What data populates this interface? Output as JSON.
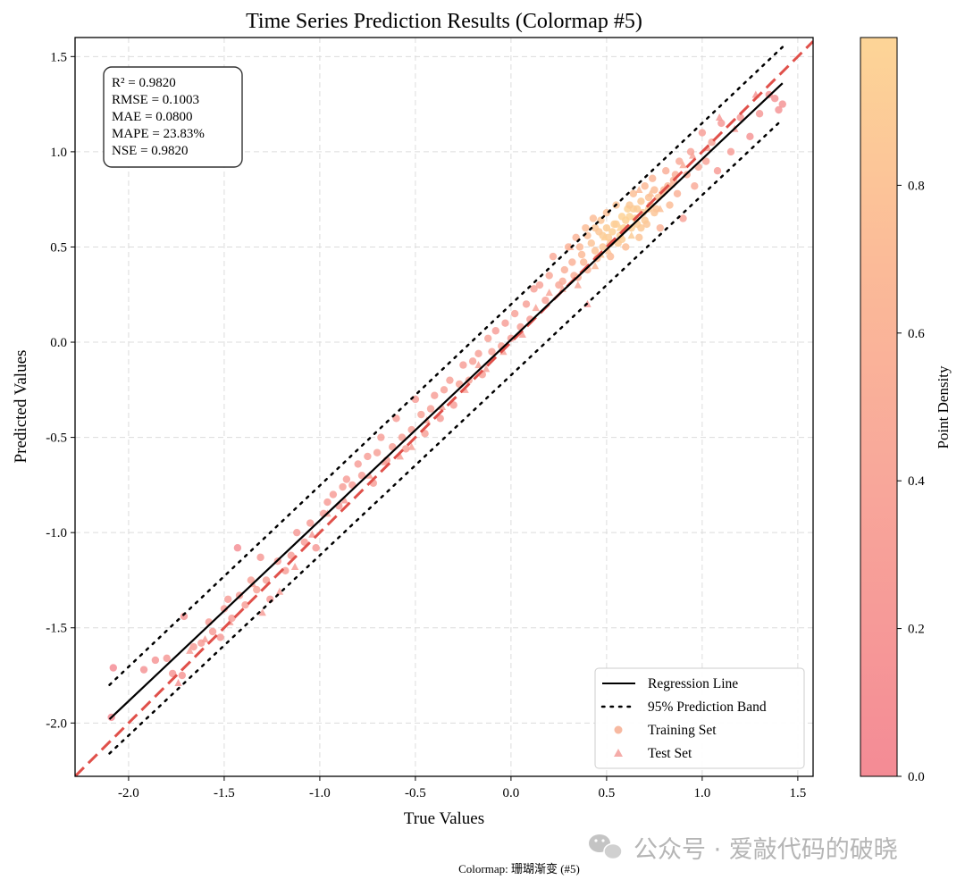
{
  "chart_data": {
    "type": "scatter",
    "title": "Time Series Prediction Results (Colormap #5)",
    "xlabel": "True Values",
    "ylabel": "Predicted Values",
    "xlim": [
      -2.28,
      1.58
    ],
    "ylim": [
      -2.28,
      1.6
    ],
    "x_ticks": [
      -2.0,
      -1.5,
      -1.0,
      -0.5,
      0.0,
      0.5,
      1.0,
      1.5
    ],
    "x_tick_labels": [
      "-2.0",
      "-1.5",
      "-1.0",
      "-0.5",
      "0.0",
      "0.5",
      "1.0",
      "1.5"
    ],
    "y_ticks": [
      -2.0,
      -1.5,
      -1.0,
      -0.5,
      0.0,
      0.5,
      1.0,
      1.5
    ],
    "y_tick_labels": [
      "-2.0",
      "-1.5",
      "-1.0",
      "-0.5",
      "0.0",
      "0.5",
      "1.0",
      "1.5"
    ],
    "grid": true,
    "identity_line": {
      "x": [
        -2.28,
        1.58
      ],
      "y": [
        -2.28,
        1.58
      ],
      "style": "dashed",
      "color": "#e0504a"
    },
    "regression_line": {
      "name": "Regression Line",
      "x": [
        -2.1,
        1.42
      ],
      "y": [
        -1.98,
        1.36
      ]
    },
    "prediction_band": {
      "name": "95% Prediction Band",
      "x": [
        -2.1,
        1.42
      ],
      "upper": [
        -1.8,
        1.55
      ],
      "lower": [
        -2.16,
        1.17
      ]
    },
    "series": [
      {
        "name": "Training Set",
        "marker": "circle",
        "points": [
          [
            -2.08,
            -1.71
          ],
          [
            -2.09,
            -1.97
          ],
          [
            -1.92,
            -1.72
          ],
          [
            -1.86,
            -1.67
          ],
          [
            -1.8,
            -1.66
          ],
          [
            -1.77,
            -1.74
          ],
          [
            -1.72,
            -1.75
          ],
          [
            -1.71,
            -1.44
          ],
          [
            -1.66,
            -1.6
          ],
          [
            -1.62,
            -1.58
          ],
          [
            -1.58,
            -1.47
          ],
          [
            -1.56,
            -1.52
          ],
          [
            -1.52,
            -1.55
          ],
          [
            -1.5,
            -1.4
          ],
          [
            -1.48,
            -1.35
          ],
          [
            -1.46,
            -1.45
          ],
          [
            -1.43,
            -1.08
          ],
          [
            -1.42,
            -1.33
          ],
          [
            -1.39,
            -1.38
          ],
          [
            -1.36,
            -1.25
          ],
          [
            -1.33,
            -1.3
          ],
          [
            -1.31,
            -1.13
          ],
          [
            -1.28,
            -1.25
          ],
          [
            -1.26,
            -1.35
          ],
          [
            -1.22,
            -1.15
          ],
          [
            -1.18,
            -1.2
          ],
          [
            -1.15,
            -1.12
          ],
          [
            -1.12,
            -1.0
          ],
          [
            -1.08,
            -1.05
          ],
          [
            -1.05,
            -0.95
          ],
          [
            -1.02,
            -1.08
          ],
          [
            -0.98,
            -0.9
          ],
          [
            -0.96,
            -0.84
          ],
          [
            -0.93,
            -0.8
          ],
          [
            -0.9,
            -0.86
          ],
          [
            -0.88,
            -0.76
          ],
          [
            -0.86,
            -0.72
          ],
          [
            -0.83,
            -0.75
          ],
          [
            -0.8,
            -0.64
          ],
          [
            -0.78,
            -0.7
          ],
          [
            -0.75,
            -0.6
          ],
          [
            -0.72,
            -0.74
          ],
          [
            -0.7,
            -0.58
          ],
          [
            -0.68,
            -0.5
          ],
          [
            -0.65,
            -0.62
          ],
          [
            -0.62,
            -0.55
          ],
          [
            -0.6,
            -0.4
          ],
          [
            -0.57,
            -0.5
          ],
          [
            -0.55,
            -0.56
          ],
          [
            -0.52,
            -0.46
          ],
          [
            -0.5,
            -0.3
          ],
          [
            -0.47,
            -0.38
          ],
          [
            -0.45,
            -0.48
          ],
          [
            -0.42,
            -0.35
          ],
          [
            -0.4,
            -0.28
          ],
          [
            -0.37,
            -0.4
          ],
          [
            -0.35,
            -0.25
          ],
          [
            -0.32,
            -0.2
          ],
          [
            -0.3,
            -0.33
          ],
          [
            -0.27,
            -0.22
          ],
          [
            -0.25,
            -0.12
          ],
          [
            -0.22,
            -0.2
          ],
          [
            -0.2,
            -0.1
          ],
          [
            -0.17,
            -0.06
          ],
          [
            -0.15,
            -0.17
          ],
          [
            -0.12,
            0.02
          ],
          [
            -0.1,
            -0.05
          ],
          [
            -0.08,
            0.06
          ],
          [
            -0.05,
            -0.02
          ],
          [
            -0.03,
            0.1
          ],
          [
            0.0,
            0.02
          ],
          [
            0.02,
            0.15
          ],
          [
            0.05,
            0.08
          ],
          [
            0.08,
            0.2
          ],
          [
            0.1,
            0.12
          ],
          [
            0.12,
            0.28
          ],
          [
            0.15,
            0.3
          ],
          [
            0.18,
            0.22
          ],
          [
            0.2,
            0.35
          ],
          [
            0.22,
            0.45
          ],
          [
            0.25,
            0.3
          ],
          [
            0.28,
            0.38
          ],
          [
            0.3,
            0.5
          ],
          [
            0.32,
            0.42
          ],
          [
            0.34,
            0.55
          ],
          [
            0.35,
            0.34
          ],
          [
            0.37,
            0.46
          ],
          [
            0.39,
            0.6
          ],
          [
            0.4,
            0.38
          ],
          [
            0.42,
            0.52
          ],
          [
            0.43,
            0.65
          ],
          [
            0.45,
            0.44
          ],
          [
            0.46,
            0.58
          ],
          [
            0.48,
            0.5
          ],
          [
            0.5,
            0.68
          ],
          [
            0.51,
            0.55
          ],
          [
            0.52,
            0.45
          ],
          [
            0.54,
            0.62
          ],
          [
            0.55,
            0.72
          ],
          [
            0.57,
            0.56
          ],
          [
            0.58,
            0.66
          ],
          [
            0.6,
            0.5
          ],
          [
            0.61,
            0.7
          ],
          [
            0.63,
            0.6
          ],
          [
            0.64,
            0.78
          ],
          [
            0.65,
            0.65
          ],
          [
            0.67,
            0.55
          ],
          [
            0.68,
            0.74
          ],
          [
            0.7,
            0.82
          ],
          [
            0.71,
            0.62
          ],
          [
            0.72,
            0.7
          ],
          [
            0.74,
            0.86
          ],
          [
            0.75,
            0.68
          ],
          [
            0.77,
            0.76
          ],
          [
            0.78,
            0.6
          ],
          [
            0.8,
            0.8
          ],
          [
            0.81,
            0.9
          ],
          [
            0.83,
            0.72
          ],
          [
            0.85,
            0.85
          ],
          [
            0.87,
            0.78
          ],
          [
            0.88,
            0.95
          ],
          [
            0.9,
            0.65
          ],
          [
            0.92,
            0.88
          ],
          [
            0.94,
            1.0
          ],
          [
            0.96,
            0.82
          ],
          [
            0.98,
            0.92
          ],
          [
            1.0,
            1.1
          ],
          [
            1.02,
            0.95
          ],
          [
            1.05,
            1.05
          ],
          [
            1.08,
            0.9
          ],
          [
            1.1,
            1.15
          ],
          [
            1.15,
            1.0
          ],
          [
            1.2,
            1.18
          ],
          [
            1.25,
            1.08
          ],
          [
            1.3,
            1.2
          ],
          [
            1.35,
            1.3
          ],
          [
            1.38,
            1.28
          ],
          [
            1.4,
            1.22
          ],
          [
            1.42,
            1.25
          ],
          [
            0.36,
            0.5
          ],
          [
            0.4,
            0.56
          ],
          [
            0.44,
            0.48
          ],
          [
            0.47,
            0.64
          ],
          [
            0.53,
            0.58
          ],
          [
            0.56,
            0.52
          ],
          [
            0.59,
            0.6
          ],
          [
            0.62,
            0.66
          ],
          [
            0.66,
            0.62
          ],
          [
            0.69,
            0.68
          ],
          [
            0.73,
            0.72
          ],
          [
            0.76,
            0.7
          ],
          [
            0.79,
            0.78
          ],
          [
            0.82,
            0.82
          ],
          [
            0.86,
            0.88
          ],
          [
            0.6,
            0.64
          ],
          [
            0.64,
            0.7
          ],
          [
            0.68,
            0.6
          ],
          [
            0.72,
            0.76
          ],
          [
            0.5,
            0.6
          ],
          [
            0.55,
            0.62
          ],
          [
            0.58,
            0.54
          ],
          [
            0.62,
            0.72
          ],
          [
            0.7,
            0.64
          ],
          [
            0.75,
            0.8
          ],
          [
            0.66,
            0.7
          ],
          [
            0.52,
            0.52
          ],
          [
            0.48,
            0.56
          ],
          [
            0.44,
            0.6
          ],
          [
            0.38,
            0.42
          ],
          [
            0.33,
            0.35
          ],
          [
            0.27,
            0.32
          ]
        ]
      },
      {
        "name": "Test Set",
        "marker": "triangle",
        "points": [
          [
            -1.74,
            -1.79
          ],
          [
            -1.68,
            -1.62
          ],
          [
            -1.6,
            -1.56
          ],
          [
            -1.47,
            -1.47
          ],
          [
            -1.35,
            -1.27
          ],
          [
            -1.3,
            -1.42
          ],
          [
            -1.21,
            -1.31
          ],
          [
            -1.13,
            -1.18
          ],
          [
            -1.04,
            -1.01
          ],
          [
            -0.96,
            -0.9
          ],
          [
            -0.87,
            -0.83
          ],
          [
            -0.74,
            -0.7
          ],
          [
            -0.66,
            -0.63
          ],
          [
            -0.58,
            -0.6
          ],
          [
            -0.44,
            -0.41
          ],
          [
            -0.36,
            -0.34
          ],
          [
            -0.24,
            -0.25
          ],
          [
            -0.13,
            -0.14
          ],
          [
            -0.04,
            -0.05
          ],
          [
            0.06,
            0.04
          ],
          [
            0.13,
            0.18
          ],
          [
            0.2,
            0.26
          ],
          [
            0.27,
            0.28
          ],
          [
            0.31,
            0.5
          ],
          [
            0.4,
            0.2
          ],
          [
            0.44,
            0.4
          ],
          [
            0.49,
            0.55
          ],
          [
            0.57,
            0.6
          ],
          [
            0.63,
            0.56
          ],
          [
            0.67,
            0.8
          ],
          [
            0.73,
            0.78
          ],
          [
            0.78,
            0.7
          ],
          [
            0.84,
            0.83
          ],
          [
            0.9,
            0.93
          ],
          [
            0.95,
            0.98
          ],
          [
            1.03,
            1.02
          ],
          [
            1.09,
            1.18
          ],
          [
            1.17,
            1.12
          ],
          [
            1.28,
            1.3
          ],
          [
            0.51,
            0.48
          ],
          [
            0.47,
            0.46
          ],
          [
            0.35,
            0.3
          ],
          [
            -0.17,
            -0.12
          ],
          [
            -0.52,
            -0.55
          ]
        ]
      }
    ],
    "colorbar": {
      "label": "Point Density",
      "ticks": [
        0.0,
        0.2,
        0.4,
        0.6,
        0.8
      ],
      "tick_labels": [
        "0.0",
        "0.2",
        "0.4",
        "0.6",
        "0.8"
      ],
      "range": [
        0.0,
        1.0
      ],
      "colors": [
        "#f48b95",
        "#fdd597"
      ]
    },
    "stats": [
      "R² = 0.9820",
      "RMSE = 0.1003",
      "MAE = 0.0800",
      "MAPE = 23.83%",
      "NSE = 0.9820"
    ],
    "legend": [
      {
        "label": "Regression Line",
        "kind": "line"
      },
      {
        "label": "95% Prediction Band",
        "kind": "dotted"
      },
      {
        "label": "Training Set",
        "kind": "circle"
      },
      {
        "label": "Test Set",
        "kind": "triangle"
      }
    ],
    "legend_position": "bottom-right",
    "footer": "Colormap: 珊瑚渐变 (#5)"
  },
  "watermark": "公众号 · 爱敲代码的破晓"
}
